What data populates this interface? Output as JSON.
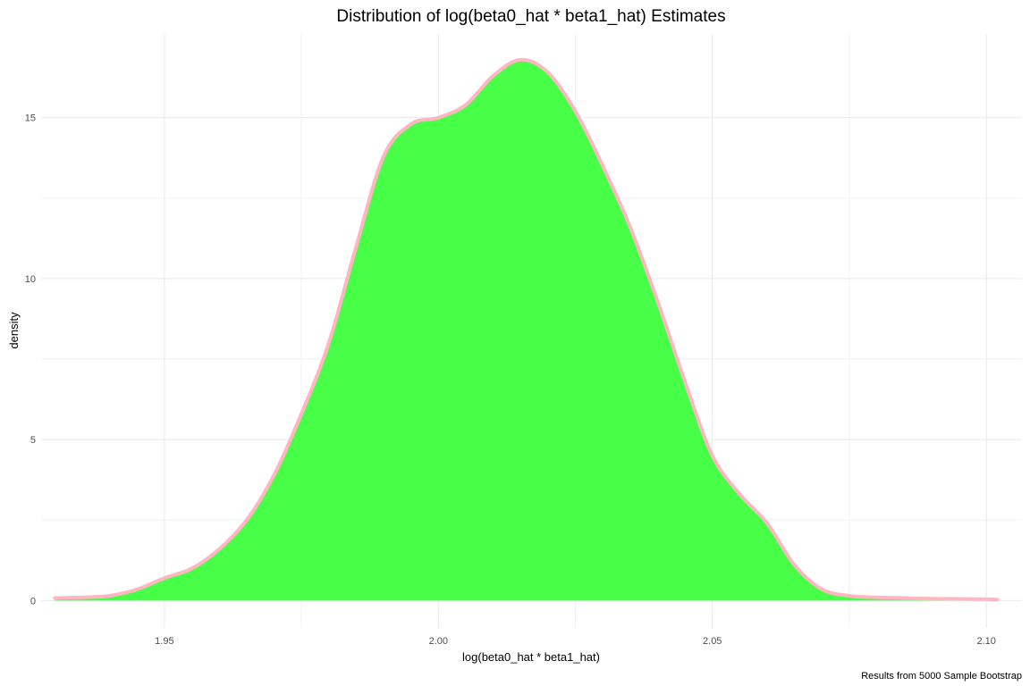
{
  "chart_data": {
    "type": "area",
    "title": "Distribution of log(beta0_hat * beta1_hat) Estimates",
    "xlabel": "log(beta0_hat * beta1_hat)",
    "ylabel": "density",
    "caption": "Results from 5000 Sample Bootstrap",
    "xlim": [
      1.9275,
      2.1065
    ],
    "ylim": [
      -0.85,
      17.6
    ],
    "x_ticks": [
      "1.95",
      "2.00",
      "2.05",
      "2.10"
    ],
    "x_tick_values": [
      1.95,
      2.0,
      2.05,
      2.1
    ],
    "y_ticks": [
      "0",
      "5",
      "10",
      "15"
    ],
    "y_tick_values": [
      0,
      5,
      10,
      15
    ],
    "grid": true,
    "fill_color": "#33ff33",
    "line_color": "#ffb6c1",
    "series": [
      {
        "x": [
          1.93,
          1.935,
          1.94,
          1.945,
          1.95,
          1.955,
          1.96,
          1.965,
          1.97,
          1.975,
          1.98,
          1.985,
          1.99,
          1.995,
          2.0,
          2.005,
          2.01,
          2.015,
          2.02,
          2.025,
          2.03,
          2.035,
          2.04,
          2.045,
          2.05,
          2.055,
          2.06,
          2.065,
          2.07,
          2.075,
          2.08,
          2.085,
          2.09,
          2.095,
          2.1,
          2.102
        ],
        "values": [
          0.08,
          0.1,
          0.15,
          0.35,
          0.7,
          1.0,
          1.6,
          2.5,
          3.9,
          5.8,
          8.0,
          11.0,
          13.8,
          14.8,
          15.0,
          15.4,
          16.3,
          16.8,
          16.4,
          15.2,
          13.5,
          11.6,
          9.3,
          6.8,
          4.5,
          3.3,
          2.4,
          1.1,
          0.35,
          0.15,
          0.1,
          0.08,
          0.06,
          0.05,
          0.04,
          0.03
        ]
      }
    ]
  }
}
